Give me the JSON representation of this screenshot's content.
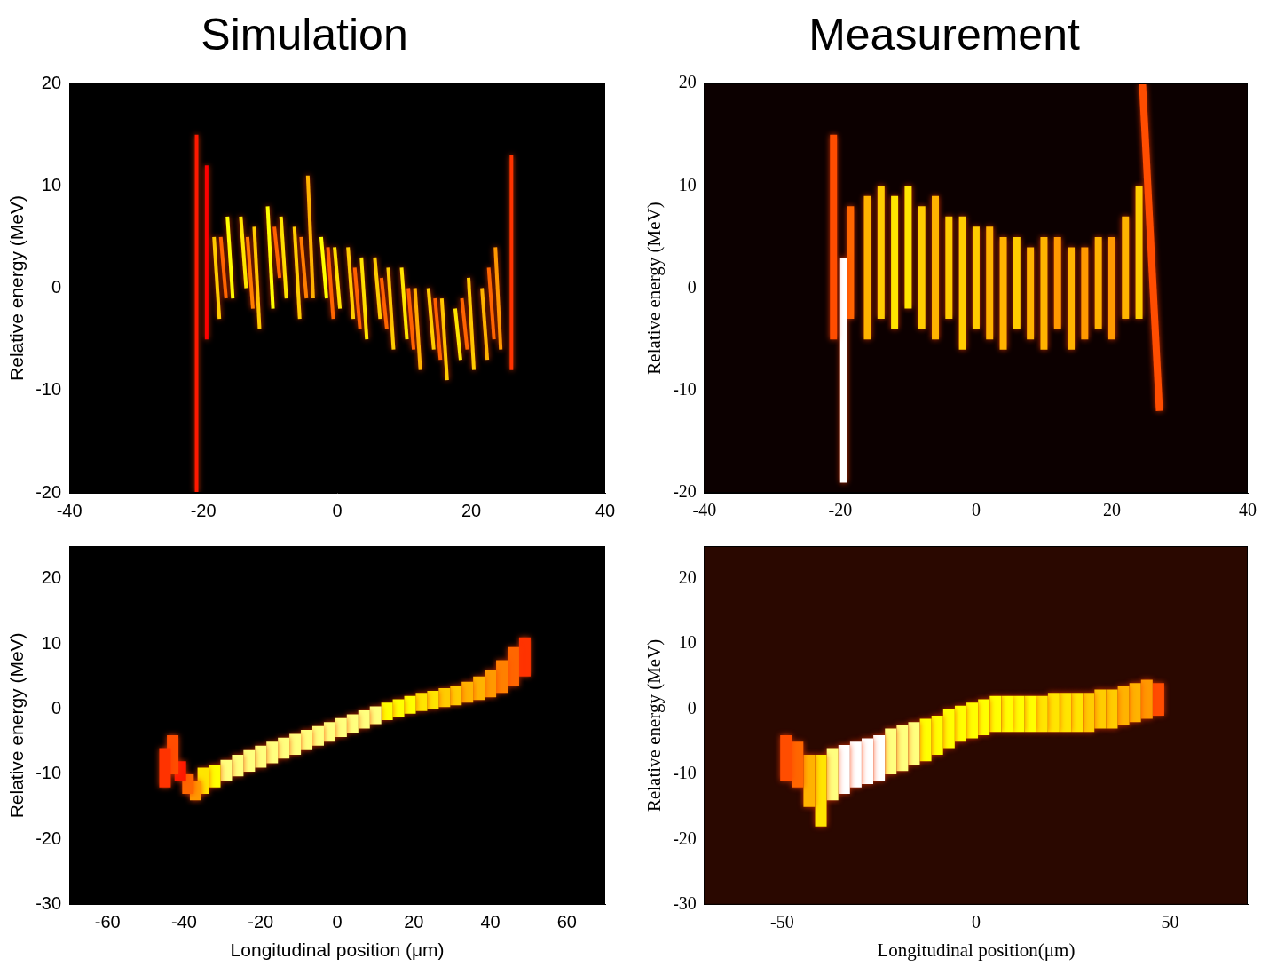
{
  "chart_data": [
    {
      "type": "heatmap",
      "title": "Simulation",
      "y_label": "Relative energy (MeV)",
      "xlim": [
        -40,
        40
      ],
      "xticks": [
        -40,
        -20,
        0,
        20,
        40
      ],
      "ylim": [
        -20,
        20
      ],
      "yticks": [
        -20,
        -10,
        0,
        10,
        20
      ],
      "grid": false,
      "streaks": [
        [
          -21,
          -20,
          -21,
          15,
          0.45
        ],
        [
          -19.5,
          -5,
          -19.5,
          12,
          0.4
        ],
        [
          -17.6,
          -3,
          -18.4,
          5,
          0.8
        ],
        [
          -16.6,
          -1,
          -17.4,
          5,
          0.6
        ],
        [
          -15.6,
          -1,
          -16.4,
          7,
          0.9
        ],
        [
          -13.6,
          0,
          -14.4,
          7,
          0.85
        ],
        [
          -12.6,
          -2,
          -13.4,
          5,
          0.65
        ],
        [
          -11.6,
          -4,
          -12.4,
          6,
          0.8
        ],
        [
          -9.6,
          -2,
          -10.4,
          8,
          0.9
        ],
        [
          -8.6,
          1,
          -9.4,
          6,
          0.6
        ],
        [
          -7.6,
          -1,
          -8.4,
          7,
          0.85
        ],
        [
          -5.6,
          -3,
          -6.4,
          6,
          0.8
        ],
        [
          -4.6,
          -1,
          -5.4,
          5,
          0.65
        ],
        [
          -3.6,
          -1,
          -4.4,
          11,
          0.75
        ],
        [
          -1.6,
          -1,
          -2.4,
          5,
          0.9
        ],
        [
          -0.6,
          -3,
          -1.4,
          4,
          0.6
        ],
        [
          0.4,
          -2,
          -0.4,
          4,
          0.85
        ],
        [
          2.4,
          -3,
          1.6,
          4,
          0.8
        ],
        [
          3.4,
          -4,
          2.6,
          2,
          0.6
        ],
        [
          4.4,
          -5,
          3.6,
          3,
          0.85
        ],
        [
          6.4,
          -3,
          5.6,
          3,
          0.8
        ],
        [
          7.4,
          -4,
          6.6,
          1,
          0.6
        ],
        [
          8.4,
          -6,
          7.6,
          2,
          0.8
        ],
        [
          10.4,
          -5,
          9.6,
          2,
          0.85
        ],
        [
          11.4,
          -6,
          10.6,
          0,
          0.6
        ],
        [
          12.4,
          -8,
          11.6,
          0,
          0.75
        ],
        [
          14.4,
          -6,
          13.6,
          0,
          0.8
        ],
        [
          15.4,
          -7,
          14.6,
          -1,
          0.6
        ],
        [
          16.4,
          -9,
          15.6,
          -1,
          0.8
        ],
        [
          18.4,
          -7,
          17.6,
          -2,
          0.85
        ],
        [
          19.4,
          -6,
          18.6,
          -1,
          0.6
        ],
        [
          20.4,
          -8,
          19.6,
          1,
          0.8
        ],
        [
          22.4,
          -7,
          21.6,
          0,
          0.75
        ],
        [
          23.4,
          -5,
          22.6,
          2,
          0.6
        ],
        [
          24.4,
          -6,
          23.6,
          4,
          0.7
        ],
        [
          26,
          -8,
          26,
          13,
          0.5
        ]
      ]
    },
    {
      "type": "heatmap",
      "title": "Measurement",
      "y_label": "Relative energy (MeV)",
      "xlim": [
        -40,
        40
      ],
      "xticks": [
        -40,
        -20,
        0,
        20,
        40
      ],
      "ylim": [
        -20,
        20
      ],
      "yticks": [
        -20,
        -10,
        0,
        10,
        20
      ],
      "grid": false,
      "streaks": [
        [
          -21,
          -5,
          -21,
          15,
          0.55
        ],
        [
          -19.5,
          -19,
          -19.5,
          3,
          1.0
        ],
        [
          -18.5,
          -3,
          -18.5,
          8,
          0.6
        ],
        [
          -16,
          -5,
          -16,
          9,
          0.75
        ],
        [
          -14,
          -3,
          -14,
          10,
          0.8
        ],
        [
          -12,
          -4,
          -12,
          9,
          0.85
        ],
        [
          -10,
          -2,
          -10,
          10,
          0.85
        ],
        [
          -8,
          -4,
          -8,
          8,
          0.8
        ],
        [
          -6,
          -5,
          -6,
          9,
          0.75
        ],
        [
          -4,
          -3,
          -4,
          7,
          0.8
        ],
        [
          -2,
          -6,
          -2,
          7,
          0.8
        ],
        [
          0,
          -4,
          0,
          6,
          0.8
        ],
        [
          2,
          -5,
          2,
          6,
          0.75
        ],
        [
          4,
          -6,
          4,
          5,
          0.75
        ],
        [
          6,
          -4,
          6,
          5,
          0.8
        ],
        [
          8,
          -5,
          8,
          4,
          0.75
        ],
        [
          10,
          -6,
          10,
          5,
          0.75
        ],
        [
          12,
          -4,
          12,
          5,
          0.7
        ],
        [
          14,
          -6,
          14,
          4,
          0.75
        ],
        [
          16,
          -5,
          16,
          4,
          0.7
        ],
        [
          18,
          -4,
          18,
          5,
          0.75
        ],
        [
          20,
          -5,
          20,
          5,
          0.7
        ],
        [
          22,
          -3,
          22,
          7,
          0.75
        ],
        [
          24,
          -3,
          24,
          10,
          0.8
        ],
        [
          24.5,
          20,
          27,
          -12,
          0.55
        ]
      ]
    },
    {
      "type": "heatmap",
      "x_label": "Longitudinal position (μm)",
      "y_label": "Relative energy (MeV)",
      "xlim": [
        -70,
        70
      ],
      "xticks": [
        -60,
        -40,
        -20,
        0,
        20,
        40,
        60
      ],
      "ylim": [
        -30,
        25
      ],
      "yticks": [
        -30,
        -20,
        -10,
        0,
        10,
        20
      ],
      "grid": false,
      "streaks": [
        [
          -45,
          -12,
          -45,
          -6,
          0.5
        ],
        [
          -43,
          -10,
          -43,
          -4,
          0.55
        ],
        [
          -41,
          -11,
          -41,
          -8,
          0.45
        ],
        [
          -39,
          -13,
          -39,
          -10,
          0.6
        ],
        [
          -37,
          -14,
          -37,
          -11,
          0.7
        ],
        [
          -35,
          -13,
          -35,
          -9,
          0.85
        ],
        [
          -32,
          -12,
          -32,
          -8.5,
          0.9
        ],
        [
          -29,
          -11,
          -29,
          -7.8,
          0.95
        ],
        [
          -26,
          -10.3,
          -26,
          -7,
          0.95
        ],
        [
          -23,
          -9.6,
          -23,
          -6.3,
          0.95
        ],
        [
          -20,
          -9,
          -20,
          -5.6,
          0.95
        ],
        [
          -17,
          -8.3,
          -17,
          -5,
          0.95
        ],
        [
          -14,
          -7.6,
          -14,
          -4.4,
          0.95
        ],
        [
          -11,
          -7,
          -11,
          -3.8,
          0.95
        ],
        [
          -8,
          -6.3,
          -8,
          -3.2,
          0.95
        ],
        [
          -5,
          -5.6,
          -5,
          -2.6,
          0.95
        ],
        [
          -2,
          -5,
          -2,
          -2,
          0.95
        ],
        [
          1,
          -4.3,
          1,
          -1.4,
          0.95
        ],
        [
          4,
          -3.6,
          4,
          -0.8,
          0.95
        ],
        [
          7,
          -3,
          7,
          -0.2,
          0.95
        ],
        [
          10,
          -2.3,
          10,
          0.4,
          0.95
        ],
        [
          13,
          -1.7,
          13,
          1,
          0.9
        ],
        [
          16,
          -1.2,
          16,
          1.5,
          0.9
        ],
        [
          19,
          -0.7,
          19,
          2,
          0.9
        ],
        [
          22,
          -0.3,
          22,
          2.5,
          0.85
        ],
        [
          25,
          0,
          25,
          2.8,
          0.85
        ],
        [
          28,
          0.3,
          28,
          3.2,
          0.8
        ],
        [
          31,
          0.6,
          31,
          3.6,
          0.8
        ],
        [
          34,
          1,
          34,
          4.2,
          0.75
        ],
        [
          37,
          1.4,
          37,
          5,
          0.75
        ],
        [
          40,
          1.8,
          40,
          6,
          0.7
        ],
        [
          43,
          2.5,
          43,
          7.5,
          0.65
        ],
        [
          46,
          3.5,
          46,
          9.5,
          0.6
        ],
        [
          49,
          5,
          49,
          11,
          0.5
        ]
      ]
    },
    {
      "type": "heatmap",
      "x_label": "Longitudinal position(μm)",
      "y_label": "Relative energy (MeV)",
      "xlim": [
        -70,
        70
      ],
      "xticks": [
        -50,
        0,
        50
      ],
      "ylim": [
        -30,
        25
      ],
      "yticks": [
        -30,
        -20,
        -10,
        0,
        10,
        20
      ],
      "grid": false,
      "streaks": [
        [
          -49,
          -11,
          -49,
          -4,
          0.55
        ],
        [
          -46,
          -12,
          -46,
          -5,
          0.6
        ],
        [
          -43,
          -15,
          -43,
          -7,
          0.75
        ],
        [
          -40,
          -18,
          -40,
          -7,
          0.85
        ],
        [
          -37,
          -14,
          -37,
          -6,
          0.95
        ],
        [
          -34,
          -13,
          -34,
          -5.5,
          1.0
        ],
        [
          -31,
          -12,
          -31,
          -5,
          1.0
        ],
        [
          -28,
          -11.5,
          -28,
          -4.5,
          1.0
        ],
        [
          -25,
          -11,
          -25,
          -4,
          1.0
        ],
        [
          -22,
          -10,
          -22,
          -3,
          0.95
        ],
        [
          -19,
          -9.5,
          -19,
          -2.5,
          0.95
        ],
        [
          -16,
          -8.5,
          -16,
          -2,
          0.95
        ],
        [
          -13,
          -8,
          -13,
          -1.5,
          0.9
        ],
        [
          -10,
          -7,
          -10,
          -1,
          0.9
        ],
        [
          -7,
          -6,
          -7,
          0,
          0.9
        ],
        [
          -4,
          -5,
          -4,
          0.5,
          0.9
        ],
        [
          -1,
          -4.5,
          -1,
          1,
          0.9
        ],
        [
          2,
          -4,
          2,
          1.5,
          0.9
        ],
        [
          5,
          -3.5,
          5,
          2,
          0.9
        ],
        [
          8,
          -3.5,
          8,
          2,
          0.9
        ],
        [
          11,
          -3.5,
          11,
          2,
          0.9
        ],
        [
          14,
          -3.5,
          14,
          2,
          0.9
        ],
        [
          17,
          -3.5,
          17,
          2,
          0.85
        ],
        [
          20,
          -3.5,
          20,
          2.5,
          0.85
        ],
        [
          23,
          -3.5,
          23,
          2.5,
          0.85
        ],
        [
          26,
          -3.5,
          26,
          2.5,
          0.85
        ],
        [
          29,
          -3.5,
          29,
          2.5,
          0.8
        ],
        [
          32,
          -3,
          32,
          3,
          0.8
        ],
        [
          35,
          -3,
          35,
          3,
          0.8
        ],
        [
          38,
          -2.5,
          38,
          3.5,
          0.75
        ],
        [
          41,
          -2,
          41,
          4,
          0.75
        ],
        [
          44,
          -1.5,
          44,
          4.5,
          0.7
        ],
        [
          47,
          -1,
          47,
          4,
          0.55
        ]
      ]
    }
  ]
}
